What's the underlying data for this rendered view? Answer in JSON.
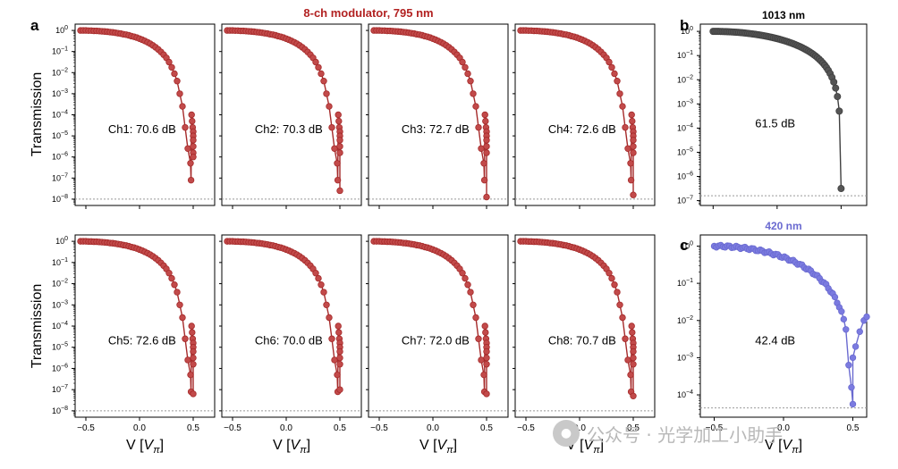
{
  "figure": {
    "top_title": "8-ch modulator, 795 nm",
    "panel_letters": [
      "a",
      "b",
      "c"
    ],
    "ylabel": "Transmission",
    "xlabel_prefix": "V [",
    "xlabel_var": "V",
    "xlabel_sub": "π",
    "xlabel_suffix": "]",
    "watermark": "公众号 · 光学加工小助手",
    "watermark_logo": "wechat-logo"
  },
  "colors": {
    "red": "#a52a2a",
    "red_light": "#c24a4a",
    "gray": "#404040",
    "blue": "#6a6ad0",
    "dotted": "#999999",
    "title_red": "#b22222",
    "title_blue": "#6a6ad0"
  },
  "chart_data": [
    {
      "type": "line",
      "id": "ch1",
      "annotation": "Ch1: 70.6 dB",
      "xlim": [
        -0.6,
        0.7
      ],
      "ylim_log10": [
        -8.3,
        0.3
      ],
      "x_ticks": [
        -0.5,
        0.0,
        0.5
      ],
      "x_tick_labels": [
        "−0.5",
        "0.0",
        "0.5"
      ],
      "y_tick_exps": [
        0,
        -1,
        -2,
        -3,
        -4,
        -5,
        -6,
        -7,
        -8
      ],
      "noise_floor_log10": -8.0,
      "x": [
        -0.55,
        -0.525,
        -0.5,
        -0.475,
        -0.45,
        -0.425,
        -0.4,
        -0.375,
        -0.35,
        -0.325,
        -0.3,
        -0.275,
        -0.25,
        -0.225,
        -0.2,
        -0.175,
        -0.15,
        -0.125,
        -0.1,
        -0.075,
        -0.05,
        -0.025,
        0.0,
        0.025,
        0.05,
        0.075,
        0.1,
        0.125,
        0.15,
        0.175,
        0.2,
        0.225,
        0.25,
        0.275,
        0.3,
        0.325,
        0.35,
        0.375,
        0.4,
        0.425,
        0.45,
        0.475,
        0.48,
        0.485,
        0.49,
        0.495,
        0.5,
        0.5,
        0.5,
        0.5,
        0.5,
        0.5
      ],
      "log10_y": [
        0.0,
        0.0,
        0.0,
        -0.01,
        -0.01,
        -0.02,
        -0.02,
        -0.03,
        -0.04,
        -0.05,
        -0.06,
        -0.08,
        -0.09,
        -0.11,
        -0.13,
        -0.15,
        -0.18,
        -0.2,
        -0.23,
        -0.27,
        -0.3,
        -0.34,
        -0.39,
        -0.44,
        -0.5,
        -0.56,
        -0.63,
        -0.71,
        -0.8,
        -0.9,
        -1.02,
        -1.15,
        -1.3,
        -1.5,
        -1.75,
        -2.05,
        -2.4,
        -3.0,
        -3.6,
        -4.6,
        -5.6,
        -6.3,
        -7.1,
        -4.0,
        -4.3,
        -4.6,
        -4.8,
        -5.0,
        -5.2,
        -5.5,
        -5.8,
        -6.0
      ]
    },
    {
      "type": "line",
      "id": "ch2",
      "annotation": "Ch2: 70.3 dB",
      "ref": "ch1",
      "end_log10": -7.6
    },
    {
      "type": "line",
      "id": "ch3",
      "annotation": "Ch3: 72.7 dB",
      "ref": "ch1",
      "end_log10": -7.9
    },
    {
      "type": "line",
      "id": "ch4",
      "annotation": "Ch4: 72.6 dB",
      "ref": "ch1",
      "end_log10": -7.8
    },
    {
      "type": "line",
      "id": "ch5",
      "annotation": "Ch5: 72.6 dB",
      "ref": "ch1",
      "end_log10": -7.2
    },
    {
      "type": "line",
      "id": "ch6",
      "annotation": "Ch6: 70.0 dB",
      "ref": "ch1",
      "end_log10": -7.0
    },
    {
      "type": "line",
      "id": "ch7",
      "annotation": "Ch7: 72.0 dB",
      "ref": "ch1",
      "end_log10": -7.2
    },
    {
      "type": "line",
      "id": "ch8",
      "annotation": "Ch8: 70.7 dB",
      "ref": "ch1",
      "end_log10": -7.3
    },
    {
      "type": "line",
      "id": "b",
      "title": "1013 nm",
      "annotation": "61.5 dB",
      "xlim": [
        -0.6,
        0.7
      ],
      "ylim_log10": [
        -7.2,
        0.3
      ],
      "y_tick_exps": [
        0,
        -1,
        -2,
        -3,
        -4,
        -5,
        -6,
        -7
      ],
      "noise_floor_log10": -6.8,
      "start_log10": 0.0,
      "end_log10": -6.5
    },
    {
      "type": "line",
      "id": "c",
      "title": "420 nm",
      "annotation": "42.4 dB",
      "xlim": [
        -0.6,
        0.6
      ],
      "ylim_log10": [
        -4.6,
        0.3
      ],
      "y_tick_exps": [
        0,
        -1,
        -2,
        -3,
        -4
      ],
      "x_ticks": [
        -0.5,
        0.0,
        0.5
      ],
      "x_tick_labels": [
        "−0.5",
        "0.0",
        "0.5"
      ],
      "noise_floor_log10": -4.35,
      "start_log10": -0.05,
      "end_log10": -4.25
    }
  ]
}
